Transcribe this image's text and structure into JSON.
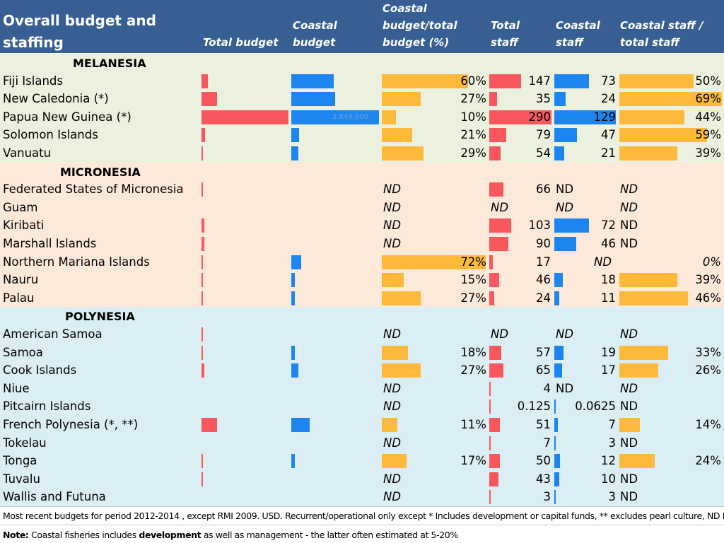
{
  "header": {
    "title_line1": "Overall budget and",
    "title_line2": "staffing",
    "col_total_budget": "Total budget",
    "col_coastal_budget_l1": "Coastal",
    "col_coastal_budget_l2": "budget",
    "col_ratio_l1": "Coastal",
    "col_ratio_l2": "budget/total",
    "col_ratio_l3": "budget (%)",
    "col_total_staff_l1": "Total",
    "col_total_staff_l2": "staff",
    "col_coastal_staff_l1": "Coastal",
    "col_coastal_staff_l2": "staff",
    "col_staff_ratio_l1": "Coastal staff /",
    "col_staff_ratio_l2": "total staff"
  },
  "colors": {
    "header_bg": "#375f94",
    "melanesia_bg": "#ebf1de",
    "micronesia_bg": "#fde9d9",
    "polynesia_bg": "#dbeef3",
    "total_bar": "#f8575d",
    "coastal_bar": "#1d85f0",
    "ratio_bar": "#fdb93a"
  },
  "chart_data": {
    "type": "table",
    "title": "Overall budget and staffing",
    "columns": [
      "Total budget",
      "Coastal budget",
      "Coastal budget/total budget (%)",
      "Total staff",
      "Coastal staff",
      "Coastal staff / total staff"
    ],
    "total_budget_max": 100,
    "coastal_budget_max": 100,
    "total_staff_max": 290,
    "coastal_staff_max": 129,
    "sections": [
      {
        "name": "MELANESIA",
        "rows": [
          {
            "country": "Fiji Islands",
            "total_budget": 7,
            "coastal_budget": 48,
            "pct": 60,
            "pct_label": "60%",
            "staff": 147,
            "staff_label": "147",
            "coastal": 73,
            "coastal_label": "73",
            "staff_pct": 50,
            "staff_pct_label": "50%",
            "ghost": ""
          },
          {
            "country": "New Caledonia (*)",
            "total_budget": 18,
            "coastal_budget": 50,
            "pct": 27,
            "pct_label": "27%",
            "staff": 35,
            "staff_label": "35",
            "coastal": 24,
            "coastal_label": "24",
            "staff_pct": 69,
            "staff_pct_label": "69%",
            "ghost": ""
          },
          {
            "country": "Papua New Guinea (*)",
            "total_budget": 100,
            "coastal_budget": 100,
            "pct": 10,
            "pct_label": "10%",
            "staff": 290,
            "staff_label": "290",
            "coastal": 129,
            "coastal_label": "129",
            "staff_pct": 44,
            "staff_pct_label": "44%",
            "ghost": "3,849,900"
          },
          {
            "country": "Solomon Islands",
            "total_budget": 4,
            "coastal_budget": 9,
            "pct": 21,
            "pct_label": "21%",
            "staff": 79,
            "staff_label": "79",
            "coastal": 47,
            "coastal_label": "47",
            "staff_pct": 59,
            "staff_pct_label": "59%",
            "ghost": ""
          },
          {
            "country": "Vanuatu",
            "total_budget": 2,
            "coastal_budget": 8,
            "pct": 29,
            "pct_label": "29%",
            "staff": 54,
            "staff_label": "54",
            "coastal": 21,
            "coastal_label": "21",
            "staff_pct": 39,
            "staff_pct_label": "39%",
            "ghost": ""
          }
        ]
      },
      {
        "name": "MICRONESIA",
        "rows": [
          {
            "country": "Federated States of Micronesia",
            "total_budget": 2,
            "coastal_budget": null,
            "pct": null,
            "pct_label": "ND",
            "staff": 66,
            "staff_label": "66",
            "coastal": null,
            "coastal_label": "ND",
            "staff_pct": null,
            "staff_pct_label": "ND",
            "ghost": ""
          },
          {
            "country": "Guam",
            "total_budget": null,
            "coastal_budget": null,
            "pct": null,
            "pct_label": "ND",
            "staff": null,
            "staff_label": "ND",
            "coastal": null,
            "coastal_label": "ND",
            "staff_pct": null,
            "staff_pct_label": "ND",
            "ghost": ""
          },
          {
            "country": "Kiribati",
            "total_budget": 3,
            "coastal_budget": null,
            "pct": null,
            "pct_label": "ND",
            "staff": 103,
            "staff_label": "103",
            "coastal": 72,
            "coastal_label": "72",
            "staff_pct": null,
            "staff_pct_label": "ND",
            "ghost": ""
          },
          {
            "country": "Marshall Islands",
            "total_budget": 3,
            "coastal_budget": null,
            "pct": null,
            "pct_label": "ND",
            "staff": 90,
            "staff_label": "90",
            "coastal": 46,
            "coastal_label": "46",
            "staff_pct": null,
            "staff_pct_label": "ND",
            "ghost": ""
          },
          {
            "country": "Northern Mariana Islands",
            "total_budget": 1,
            "coastal_budget": 11,
            "pct": 72,
            "pct_label": "72%",
            "staff": 17,
            "staff_label": "17",
            "coastal": null,
            "coastal_label": "ND",
            "staff_pct": 0,
            "staff_pct_label": "0%",
            "ghost": ""
          },
          {
            "country": "Nauru",
            "total_budget": 2,
            "coastal_budget": 4,
            "pct": 15,
            "pct_label": "15%",
            "staff": 46,
            "staff_label": "46",
            "coastal": 18,
            "coastal_label": "18",
            "staff_pct": 39,
            "staff_pct_label": "39%",
            "ghost": ""
          },
          {
            "country": "Palau",
            "total_budget": 1,
            "coastal_budget": 4,
            "pct": 27,
            "pct_label": "27%",
            "staff": 24,
            "staff_label": "24",
            "coastal": 11,
            "coastal_label": "11",
            "staff_pct": 46,
            "staff_pct_label": "46%",
            "ghost": ""
          }
        ]
      },
      {
        "name": "POLYNESIA",
        "rows": [
          {
            "country": "American Samoa",
            "total_budget": 2,
            "coastal_budget": null,
            "pct": null,
            "pct_label": "ND",
            "staff": null,
            "staff_label": "ND",
            "coastal": null,
            "coastal_label": "ND",
            "staff_pct": null,
            "staff_pct_label": "ND",
            "ghost": ""
          },
          {
            "country": "Samoa",
            "total_budget": 2,
            "coastal_budget": 4,
            "pct": 18,
            "pct_label": "18%",
            "staff": 57,
            "staff_label": "57",
            "coastal": 19,
            "coastal_label": "19",
            "staff_pct": 33,
            "staff_pct_label": "33%",
            "ghost": ""
          },
          {
            "country": "Cook Islands",
            "total_budget": 3,
            "coastal_budget": 8,
            "pct": 27,
            "pct_label": "27%",
            "staff": 65,
            "staff_label": "65",
            "coastal": 17,
            "coastal_label": "17",
            "staff_pct": 26,
            "staff_pct_label": "26%",
            "ghost": ""
          },
          {
            "country": "Niue",
            "total_budget": null,
            "coastal_budget": null,
            "pct": null,
            "pct_label": "ND",
            "staff": 4,
            "staff_label": "4",
            "coastal": null,
            "coastal_label": "ND",
            "staff_pct": null,
            "staff_pct_label": "ND",
            "ghost": ""
          },
          {
            "country": "Pitcairn Islands",
            "total_budget": null,
            "coastal_budget": null,
            "pct": null,
            "pct_label": "ND",
            "staff": 0.125,
            "staff_label": "0.125",
            "coastal": 0.0625,
            "coastal_label": "0.0625",
            "staff_pct": null,
            "staff_pct_label": "ND",
            "ghost": ""
          },
          {
            "country": "French Polynesia (*, **)",
            "total_budget": 18,
            "coastal_budget": 21,
            "pct": 11,
            "pct_label": "11%",
            "staff": 51,
            "staff_label": "51",
            "coastal": 7,
            "coastal_label": "7",
            "staff_pct": 14,
            "staff_pct_label": "14%",
            "ghost": ""
          },
          {
            "country": "Tokelau",
            "total_budget": null,
            "coastal_budget": null,
            "pct": null,
            "pct_label": "ND",
            "staff": 7,
            "staff_label": "7",
            "coastal": 3,
            "coastal_label": "3",
            "staff_pct": null,
            "staff_pct_label": "ND",
            "ghost": ""
          },
          {
            "country": "Tonga",
            "total_budget": 2,
            "coastal_budget": 4,
            "pct": 17,
            "pct_label": "17%",
            "staff": 50,
            "staff_label": "50",
            "coastal": 12,
            "coastal_label": "12",
            "staff_pct": 24,
            "staff_pct_label": "24%",
            "ghost": ""
          },
          {
            "country": "Tuvalu",
            "total_budget": 1,
            "coastal_budget": null,
            "pct": null,
            "pct_label": "ND",
            "staff": 43,
            "staff_label": "43",
            "coastal": 10,
            "coastal_label": "10",
            "staff_pct": null,
            "staff_pct_label": "ND",
            "ghost": ""
          },
          {
            "country": "Wallis and Futuna",
            "total_budget": null,
            "coastal_budget": null,
            "pct": null,
            "pct_label": "ND",
            "staff": 3,
            "staff_label": "3",
            "coastal": 3,
            "coastal_label": "3",
            "staff_pct": null,
            "staff_pct_label": "ND",
            "ghost": ""
          }
        ]
      }
    ]
  },
  "footnote": {
    "line1": "Most recent budgets for period 2012-2014 , except RMI 2009. USD.  Recurrent/operational only except * Includes development or capital funds, ** excludes pearl culture, ND No data",
    "note_label": "Note:",
    "note_text_a": " Coastal fisheries includes ",
    "note_bold": "development",
    "note_text_b": " as well as management - the latter often estimated at 5-20%"
  }
}
